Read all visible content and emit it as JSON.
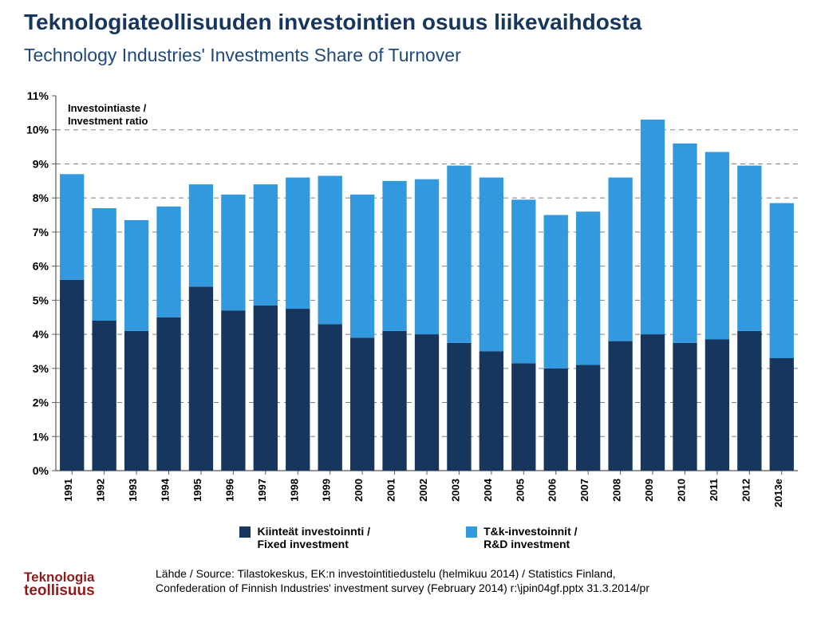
{
  "title_main": "Teknologiateollisuuden investointien osuus liikevaihdosta",
  "title_main_color": "#17365d",
  "title_main_fontsize": 28,
  "title_sub": "Technology Industries' Investments Share of Turnover",
  "title_sub_color": "#1f497d",
  "title_sub_fontsize": 23,
  "inset_label_line1": "Investointiaste /",
  "inset_label_line2": "Investment ratio",
  "chart": {
    "type": "stacked-bar",
    "categories": [
      "1991",
      "1992",
      "1993",
      "1994",
      "1995",
      "1996",
      "1997",
      "1998",
      "1999",
      "2000",
      "2001",
      "2002",
      "2003",
      "2004",
      "2005",
      "2006",
      "2007",
      "2008",
      "2009",
      "2010",
      "2011",
      "2012",
      "2013e"
    ],
    "series_fixed": {
      "label_line1": "Kiinteät investoinnti /",
      "label_line2": "Fixed investment",
      "color": "#17365d",
      "values": [
        5.6,
        4.4,
        4.1,
        4.5,
        5.4,
        4.7,
        4.85,
        4.75,
        4.3,
        3.9,
        4.1,
        4.0,
        3.75,
        3.5,
        3.15,
        3.0,
        3.1,
        3.8,
        4.0,
        3.75,
        3.85,
        4.1,
        3.3
      ]
    },
    "series_rd": {
      "label_line1": "T&k-investoinnit /",
      "label_line2": "R&D investment",
      "color": "#3399de",
      "values": [
        3.1,
        3.3,
        3.25,
        3.25,
        3.0,
        3.4,
        3.55,
        3.85,
        4.35,
        4.2,
        4.4,
        4.55,
        5.2,
        5.1,
        4.8,
        4.5,
        4.5,
        4.8,
        6.3,
        5.85,
        5.5,
        4.85,
        4.55
      ]
    },
    "y_axis": {
      "min": 0,
      "max": 11,
      "tick": 1,
      "suffix": "%",
      "grid_color": "#808080",
      "axis_color": "#595959",
      "tick_font": 14,
      "tick_weight": "bold",
      "tick_color": "#000000"
    },
    "x_axis": {
      "tick_font": 13,
      "tick_weight": "bold",
      "tick_color": "#000000",
      "label_rotate": -90
    },
    "plot": {
      "bg": "#ffffff",
      "bar_gap_ratio": 0.25
    }
  },
  "legend_font_color": "#000000",
  "source_line1": "Lähde / Source: Tilastokeskus, EK:n investointitiedustelu (helmikuu 2014) / Statistics Finland,",
  "source_line2": "Confederation of Finnish Industries' investment survey (February 2014)   r:\\jpin04gf.pptx  31.3.2014/pr",
  "source_color": "#000000",
  "logo_top": "Teknologia",
  "logo_bottom": "teollisuus",
  "logo_color": "#8c1b1b"
}
